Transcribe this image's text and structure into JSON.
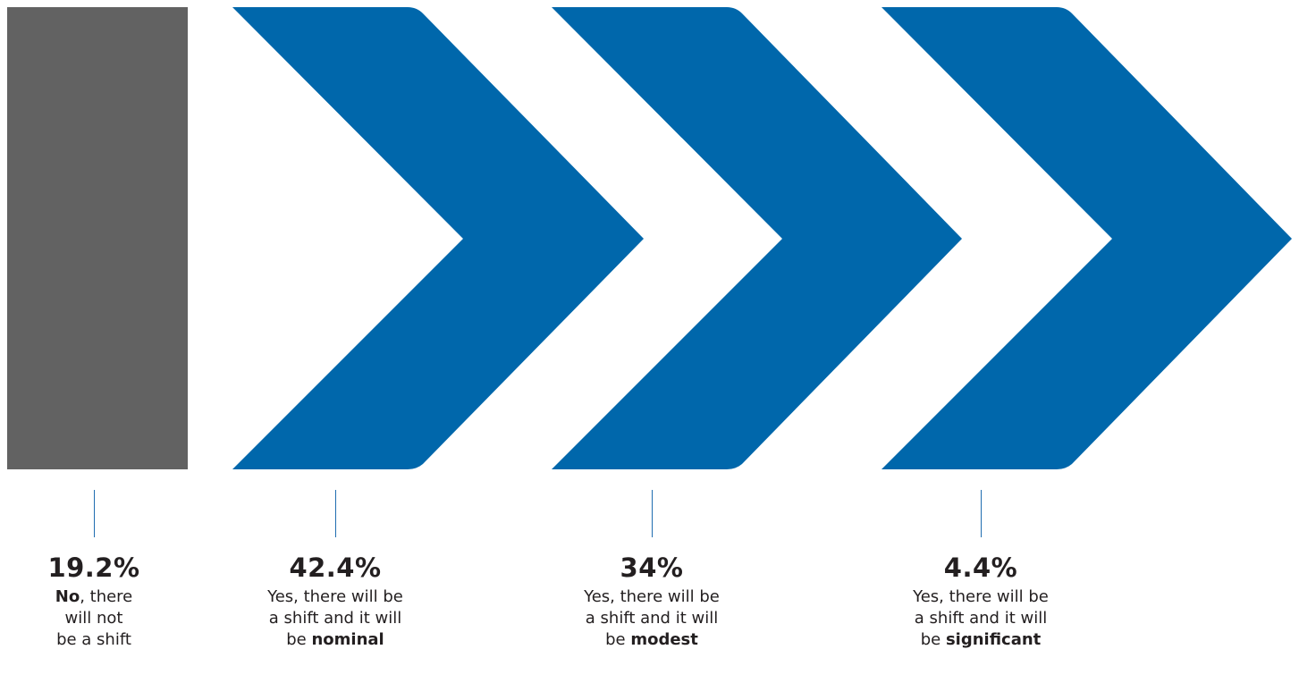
{
  "colors": {
    "no_shift": "#626262",
    "shift": "#0067ab",
    "connector": "#1f6db0",
    "text": "#231f20"
  },
  "items": [
    {
      "percent": "19.2%",
      "emphasis": "No",
      "line1_rest": ", there",
      "line2": "will not",
      "line3_prefix": "be a shift",
      "line3_bold": ""
    },
    {
      "percent": "42.4%",
      "line1": "Yes, there will be",
      "line2": "a shift and it will",
      "line3_prefix": "be ",
      "line3_bold": "nominal"
    },
    {
      "percent": "34%",
      "line1": "Yes, there will be",
      "line2": "a shift and it will",
      "line3_prefix": "be ",
      "line3_bold": "modest"
    },
    {
      "percent": "4.4%",
      "line1": "Yes, there will be",
      "line2": "a shift and it will",
      "line3_prefix": "be ",
      "line3_bold": "significant"
    }
  ]
}
